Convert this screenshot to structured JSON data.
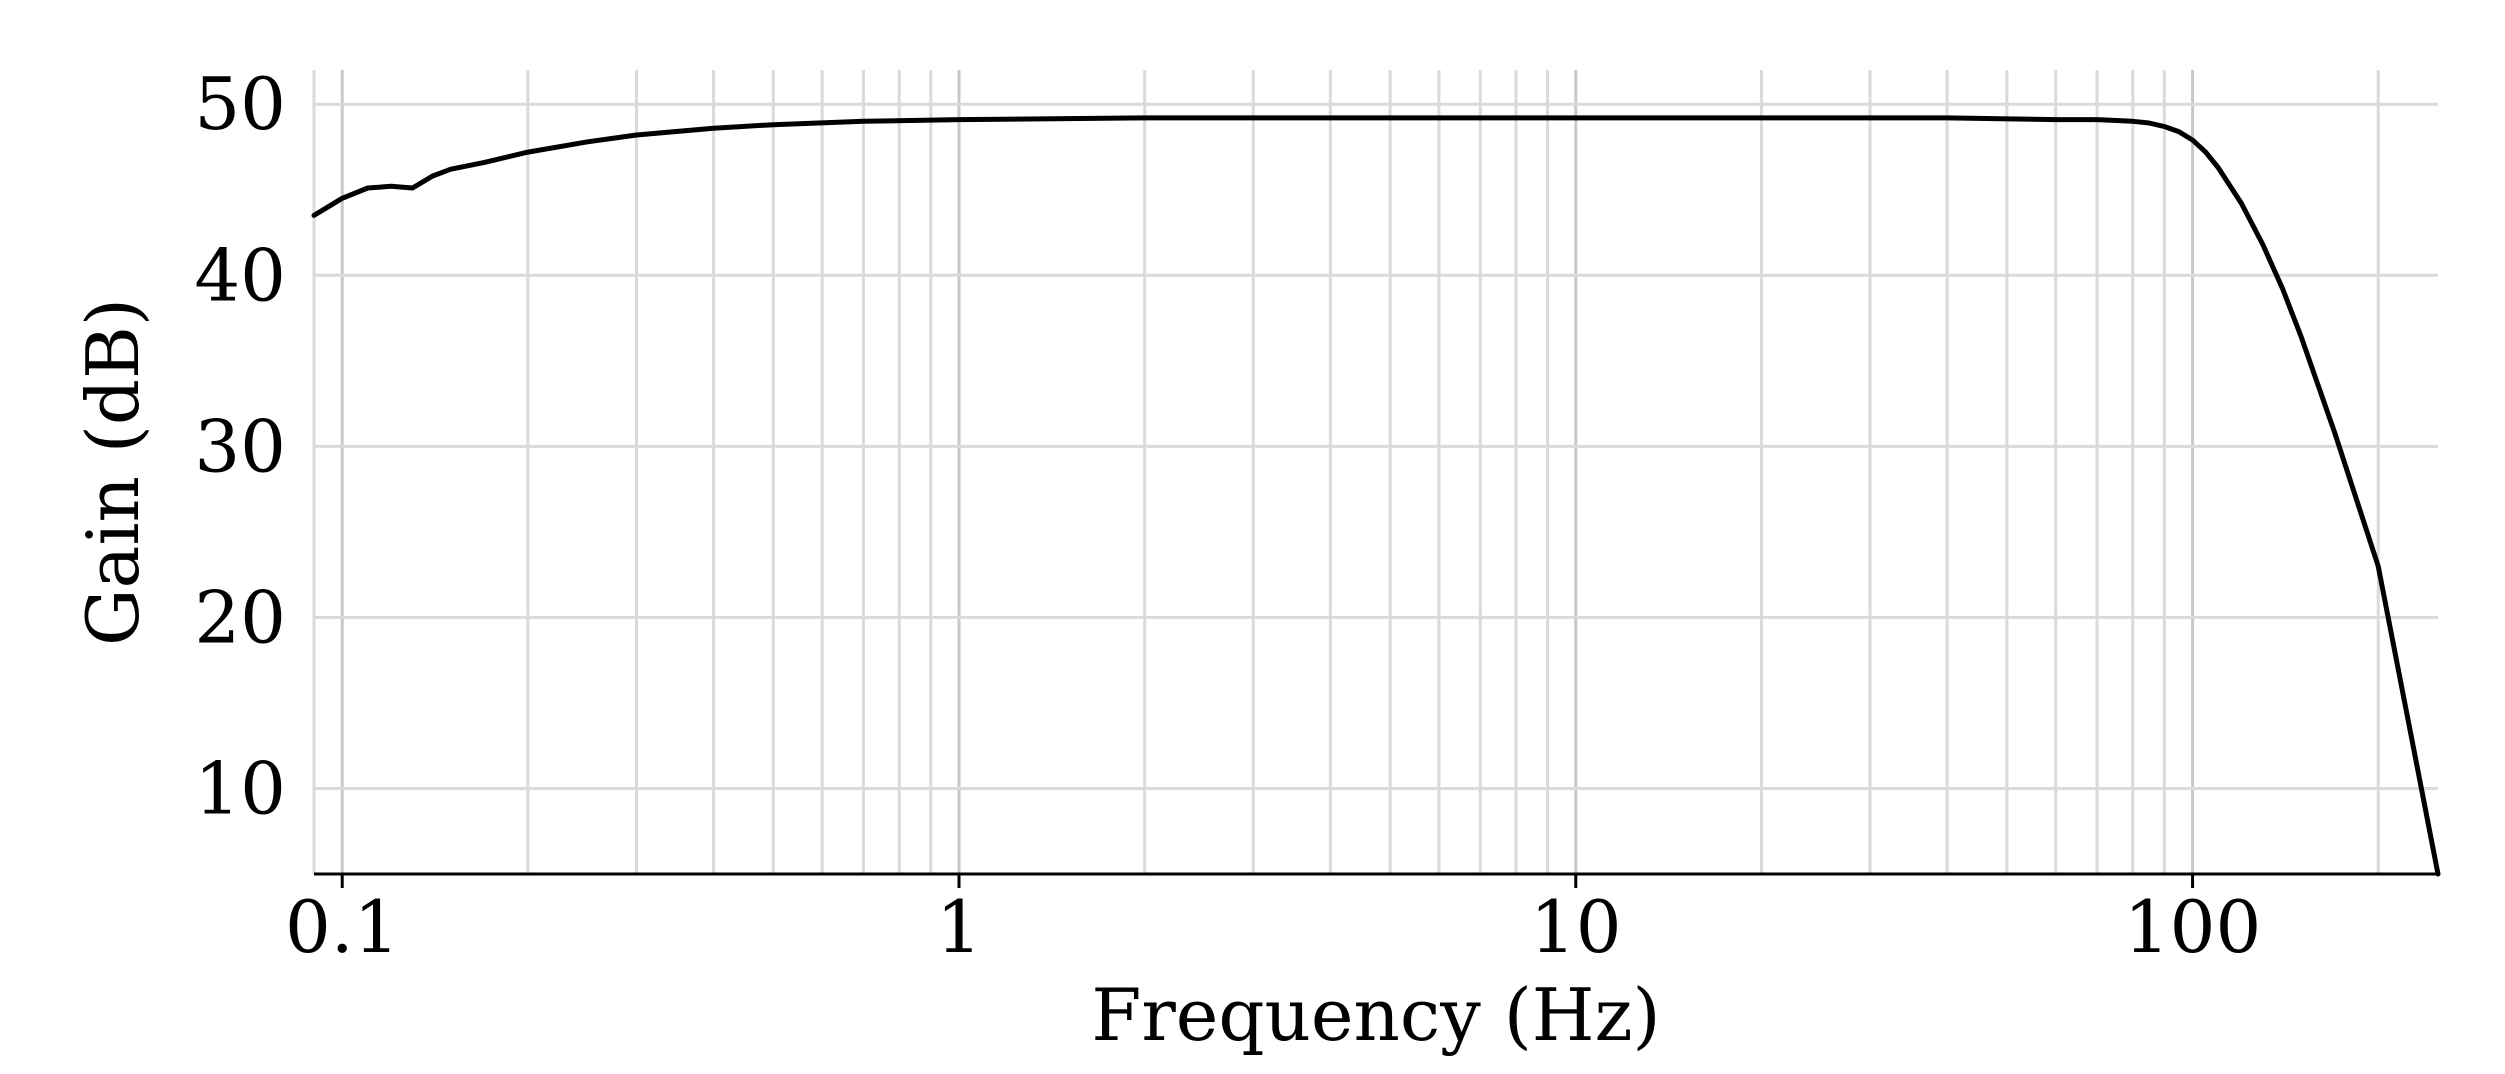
{
  "chart_data": {
    "type": "line",
    "title": "",
    "xlabel": "Frequency (Hz)",
    "ylabel": "Gain (dB)",
    "xscale": "log",
    "xlim": [
      0.09,
      250
    ],
    "ylim": [
      5,
      52
    ],
    "x_ticks": [
      0.1,
      1,
      10,
      100
    ],
    "x_tick_labels": [
      "0.1",
      "1",
      "10",
      "100"
    ],
    "y_ticks": [
      10,
      20,
      30,
      40,
      50
    ],
    "y_tick_labels": [
      "10",
      "20",
      "30",
      "40",
      "50"
    ],
    "grid": true,
    "legend": "none",
    "line_color": "#000000",
    "series": [
      {
        "x": [
          0.09,
          0.1,
          0.11,
          0.12,
          0.13,
          0.14,
          0.15,
          0.17,
          0.2,
          0.25,
          0.3,
          0.4,
          0.5,
          0.7,
          1,
          2,
          5,
          10,
          20,
          40,
          60,
          70,
          80,
          85,
          90,
          95,
          100,
          105,
          110,
          120,
          130,
          140,
          150,
          170,
          200,
          250
        ],
        "y": [
          43.5,
          44.5,
          45.1,
          45.2,
          45.1,
          45.8,
          46.2,
          46.6,
          47.2,
          47.8,
          48.2,
          48.6,
          48.8,
          49.0,
          49.1,
          49.2,
          49.2,
          49.2,
          49.2,
          49.2,
          49.1,
          49.1,
          49.0,
          48.9,
          48.7,
          48.4,
          47.9,
          47.2,
          46.3,
          44.2,
          41.8,
          39.2,
          36.4,
          30.8,
          23.0,
          5.0
        ]
      }
    ]
  }
}
